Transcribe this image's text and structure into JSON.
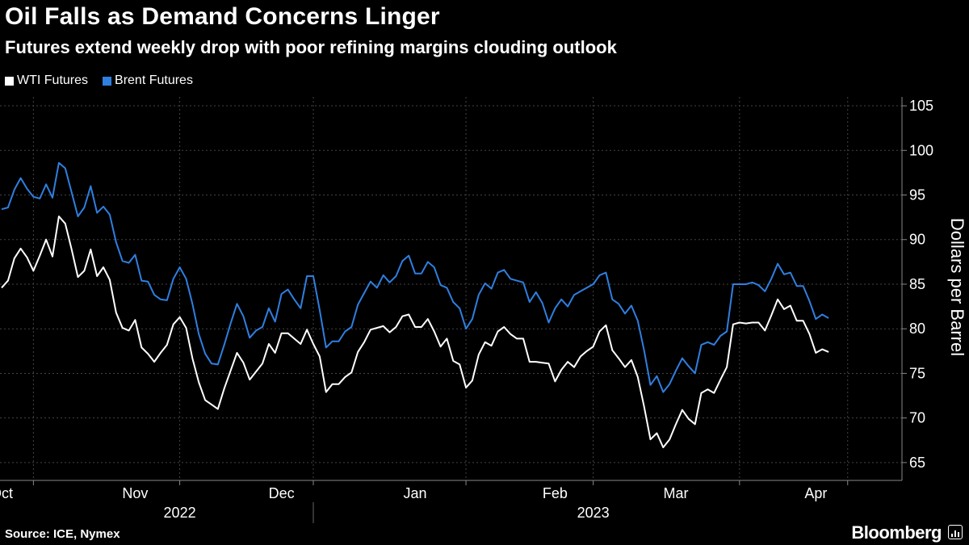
{
  "header": {
    "title": "Oil Falls as Demand Concerns Linger",
    "subtitle": "Futures extend weekly drop with poor refining margins clouding outlook"
  },
  "footer": {
    "source": "Source: ICE, Nymex",
    "brand": "Bloomberg"
  },
  "colors": {
    "wti": "#ffffff",
    "brent": "#2f7fe0",
    "grid": "#444444"
  },
  "chart_data": {
    "type": "line",
    "title": "Oil Falls as Demand Concerns Linger",
    "subtitle": "Futures extend weekly drop with poor refining margins clouding outlook",
    "ylabel": "Dollars per Barrel",
    "ylim": [
      63,
      106
    ],
    "yticks": [
      65,
      70,
      75,
      80,
      85,
      90,
      95,
      100,
      105
    ],
    "axis_side": "right",
    "grid": true,
    "legend_position": "top-left",
    "x_index_range": [
      0,
      139
    ],
    "month_ticks": [
      {
        "label": "Oct",
        "index": 0
      },
      {
        "label": "Nov",
        "index": 21
      },
      {
        "label": "Dec",
        "index": 44
      },
      {
        "label": "Jan",
        "index": 65
      },
      {
        "label": "Feb",
        "index": 87
      },
      {
        "label": "Mar",
        "index": 106
      },
      {
        "label": "Apr",
        "index": 128
      }
    ],
    "month_boundaries": [
      5,
      28,
      49,
      73,
      93,
      116,
      133
    ],
    "years": [
      {
        "label": "2022",
        "index": 28
      },
      {
        "label": "2023",
        "index": 93
      }
    ],
    "year_boundary_index": 49,
    "series": [
      {
        "name": "WTI Futures",
        "values": [
          84.6,
          85.4,
          87.9,
          89.0,
          88.0,
          86.5,
          88.2,
          90.0,
          88.1,
          92.6,
          91.8,
          88.9,
          85.8,
          86.5,
          88.9,
          85.9,
          86.9,
          85.5,
          81.8,
          80.1,
          79.8,
          81.0,
          77.9,
          77.2,
          76.3,
          77.3,
          78.2,
          80.5,
          81.3,
          80.1,
          76.7,
          74.0,
          72.0,
          71.5,
          71.0,
          73.3,
          75.3,
          77.3,
          76.2,
          74.3,
          75.2,
          76.1,
          78.3,
          77.3,
          79.5,
          79.5,
          78.9,
          78.3,
          79.9,
          78.3,
          76.9,
          72.9,
          73.8,
          73.8,
          74.6,
          75.1,
          77.4,
          78.5,
          79.9,
          80.1,
          80.3,
          79.6,
          80.2,
          81.4,
          81.6,
          80.2,
          80.2,
          81.1,
          79.7,
          78.0,
          78.9,
          76.4,
          76.0,
          73.4,
          74.2,
          77.1,
          78.5,
          78.1,
          79.7,
          80.2,
          79.4,
          78.9,
          78.9,
          76.3,
          76.3,
          76.2,
          76.1,
          74.1,
          75.4,
          76.3,
          75.7,
          76.9,
          77.5,
          78.0,
          79.7,
          80.4,
          77.6,
          76.7,
          75.7,
          76.5,
          74.6,
          71.3,
          67.6,
          68.3,
          66.7,
          67.6,
          69.3,
          70.9,
          69.9,
          69.3,
          72.8,
          73.2,
          72.8,
          74.3,
          75.7,
          80.5,
          80.7,
          80.6,
          80.7,
          80.7,
          79.8,
          81.5,
          83.3,
          82.2,
          82.6,
          80.9,
          80.9,
          79.4,
          77.3,
          77.7,
          77.4
        ]
      },
      {
        "name": "Brent Futures",
        "values": [
          93.4,
          93.6,
          95.6,
          96.9,
          95.7,
          94.8,
          94.6,
          96.2,
          94.7,
          98.6,
          98.0,
          95.3,
          92.6,
          93.6,
          96.0,
          93.0,
          93.7,
          92.8,
          89.7,
          87.6,
          87.4,
          88.3,
          85.4,
          85.3,
          83.8,
          83.3,
          83.2,
          85.6,
          86.9,
          85.6,
          82.8,
          79.4,
          77.2,
          76.1,
          76.0,
          78.2,
          80.6,
          82.8,
          81.4,
          79.0,
          79.8,
          80.2,
          82.3,
          80.8,
          83.9,
          84.4,
          83.3,
          82.3,
          85.9,
          85.9,
          82.1,
          77.9,
          78.6,
          78.6,
          79.7,
          80.2,
          82.7,
          84.0,
          85.3,
          84.6,
          86.0,
          85.2,
          85.9,
          87.6,
          88.2,
          86.2,
          86.2,
          87.5,
          86.9,
          84.9,
          84.6,
          83.0,
          82.3,
          80.0,
          81.1,
          83.8,
          85.1,
          84.5,
          86.3,
          86.6,
          85.6,
          85.4,
          85.2,
          83.0,
          84.1,
          82.9,
          80.7,
          82.3,
          83.3,
          82.5,
          83.8,
          84.2,
          84.6,
          85.0,
          86.0,
          86.3,
          83.3,
          82.8,
          81.7,
          82.6,
          80.9,
          77.6,
          73.7,
          74.7,
          72.9,
          73.8,
          75.3,
          76.7,
          75.8,
          75.0,
          78.2,
          78.5,
          78.2,
          79.2,
          79.7,
          85.0,
          85.0,
          85.0,
          85.2,
          84.9,
          84.2,
          85.6,
          87.3,
          86.1,
          86.3,
          84.8,
          84.8,
          83.1,
          81.1,
          81.6,
          81.2
        ]
      }
    ]
  }
}
